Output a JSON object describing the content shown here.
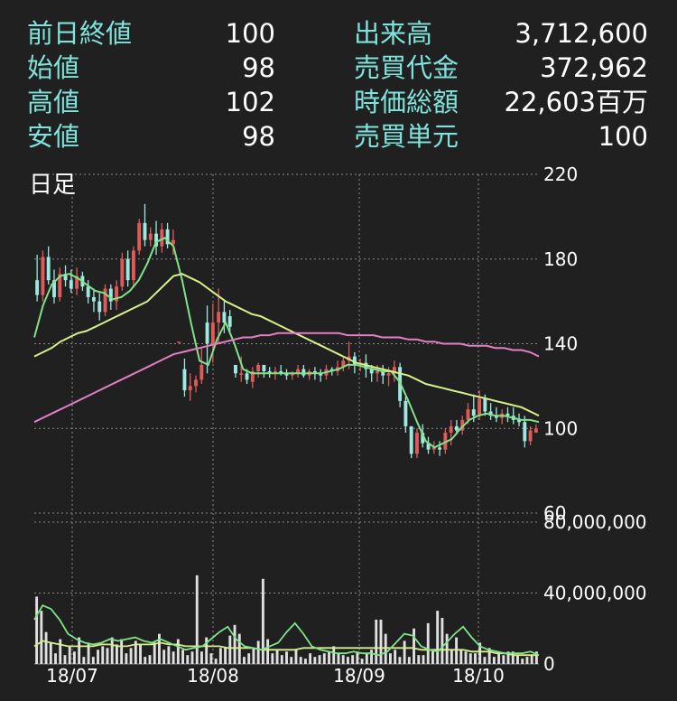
{
  "stats": {
    "left": [
      {
        "label": "前日終値",
        "value": "100"
      },
      {
        "label": "始値",
        "value": "98"
      },
      {
        "label": "高値",
        "value": "102"
      },
      {
        "label": "安値",
        "value": "98"
      }
    ],
    "right": [
      {
        "label": "出来高",
        "value": "3,712,600"
      },
      {
        "label": "売買代金",
        "value": "372,962"
      },
      {
        "label": "時価総額",
        "value": "22,603百万"
      },
      {
        "label": "売買単元",
        "value": "100"
      }
    ]
  },
  "colors": {
    "background": "#202020",
    "label": "#7fe3dc",
    "up": "#e05a5a",
    "down": "#9de8e0",
    "ma_short": "#7fe38a",
    "ma_mid": "#d6f08c",
    "ma_long": "#e27fc6",
    "volume": "#e0e0e0",
    "grid": "#8a8a8a"
  },
  "chart_data": [
    {
      "type": "candlestick",
      "title": "日足",
      "ylim": [
        60,
        220
      ],
      "y_ticks": [
        "220",
        "180",
        "140",
        "100",
        "60"
      ],
      "x_ticks": [
        "18/07",
        "18/08",
        "18/09",
        "18/10"
      ],
      "candles": [
        [
          170,
          182,
          160,
          163
        ],
        [
          163,
          184,
          160,
          181
        ],
        [
          181,
          186,
          168,
          170
        ],
        [
          170,
          175,
          159,
          162
        ],
        [
          162,
          176,
          160,
          173
        ],
        [
          173,
          177,
          167,
          170
        ],
        [
          170,
          175,
          164,
          166
        ],
        [
          166,
          176,
          163,
          172
        ],
        [
          172,
          174,
          165,
          167
        ],
        [
          167,
          170,
          159,
          162
        ],
        [
          162,
          166,
          155,
          160
        ],
        [
          160,
          164,
          151,
          155
        ],
        [
          155,
          168,
          153,
          166
        ],
        [
          166,
          168,
          156,
          160
        ],
        [
          160,
          170,
          156,
          167
        ],
        [
          167,
          183,
          165,
          180
        ],
        [
          180,
          184,
          167,
          170
        ],
        [
          170,
          186,
          167,
          184
        ],
        [
          184,
          199,
          182,
          197
        ],
        [
          197,
          206,
          186,
          189
        ],
        [
          189,
          195,
          186,
          192
        ],
        [
          192,
          198,
          182,
          186
        ],
        [
          186,
          197,
          183,
          194
        ],
        [
          194,
          197,
          185,
          187
        ],
        [
          187,
          194,
          182,
          189
        ],
        [
          141,
          141,
          141,
          141
        ],
        [
          128,
          133,
          115,
          118
        ],
        [
          118,
          126,
          113,
          120
        ],
        [
          120,
          125,
          117,
          123
        ],
        [
          123,
          138,
          121,
          130
        ],
        [
          150,
          158,
          126,
          140
        ],
        [
          140,
          159,
          131,
          150
        ],
        [
          150,
          166,
          140,
          155
        ],
        [
          155,
          160,
          145,
          150
        ],
        [
          153,
          156,
          145,
          148
        ],
        [
          130,
          130,
          124,
          126
        ],
        [
          126,
          134,
          122,
          126
        ],
        [
          126,
          128,
          121,
          123
        ],
        [
          122,
          129,
          119,
          127
        ],
        [
          127,
          131,
          124,
          130
        ],
        [
          130,
          130,
          124,
          127
        ],
        [
          127,
          129,
          124,
          126
        ],
        [
          126,
          129,
          123,
          127
        ],
        [
          127,
          130,
          125,
          126
        ],
        [
          126,
          128,
          123,
          125
        ],
        [
          125,
          127,
          123,
          126
        ],
        [
          126,
          130,
          124,
          128
        ],
        [
          128,
          130,
          124,
          125
        ],
        [
          125,
          128,
          123,
          127
        ],
        [
          127,
          129,
          123,
          126
        ],
        [
          126,
          128,
          122,
          125
        ],
        [
          125,
          130,
          123,
          128
        ],
        [
          128,
          129,
          125,
          127
        ],
        [
          127,
          132,
          125,
          129
        ],
        [
          129,
          134,
          127,
          132
        ],
        [
          132,
          141,
          128,
          134
        ],
        [
          134,
          136,
          126,
          130
        ],
        [
          130,
          133,
          127,
          131
        ],
        [
          131,
          135,
          124,
          128
        ],
        [
          128,
          130,
          122,
          126
        ],
        [
          126,
          130,
          122,
          127
        ],
        [
          127,
          130,
          121,
          125
        ],
        [
          125,
          129,
          120,
          126
        ],
        [
          126,
          132,
          122,
          129
        ],
        [
          129,
          131,
          110,
          113
        ],
        [
          113,
          115,
          98,
          101
        ],
        [
          101,
          101,
          86,
          88
        ],
        [
          88,
          100,
          86,
          98
        ],
        [
          98,
          102,
          91,
          93
        ],
        [
          93,
          96,
          88,
          90
        ],
        [
          90,
          94,
          88,
          91
        ],
        [
          91,
          94,
          87,
          90
        ],
        [
          90,
          100,
          88,
          98
        ],
        [
          98,
          104,
          92,
          101
        ],
        [
          101,
          104,
          97,
          99
        ],
        [
          99,
          106,
          97,
          104
        ],
        [
          104,
          112,
          102,
          109
        ],
        [
          109,
          116,
          103,
          106
        ],
        [
          106,
          118,
          104,
          114
        ],
        [
          114,
          116,
          106,
          108
        ],
        [
          108,
          112,
          104,
          106
        ],
        [
          106,
          110,
          103,
          105
        ],
        [
          105,
          109,
          102,
          107
        ],
        [
          107,
          110,
          103,
          106
        ],
        [
          106,
          110,
          102,
          104
        ],
        [
          104,
          107,
          101,
          103
        ],
        [
          103,
          106,
          91,
          94
        ],
        [
          94,
          101,
          92,
          99
        ],
        [
          98,
          102,
          98,
          100
        ]
      ],
      "series": [
        {
          "values": [
            143,
            158,
            168,
            172,
            173,
            171,
            168,
            165,
            164,
            161,
            162,
            165,
            170,
            178,
            188,
            190,
            186,
            170,
            150,
            132,
            130,
            142,
            150,
            140,
            128,
            126,
            126,
            126,
            126,
            126,
            126,
            126,
            126,
            126,
            127,
            128,
            130,
            130,
            129,
            128,
            127,
            127,
            122,
            113,
            103,
            94,
            91,
            93,
            95,
            100,
            104,
            106,
            107,
            106,
            106,
            105,
            104,
            104,
            103
          ]
        },
        {
          "values": [
            134,
            136,
            138,
            141,
            143,
            145,
            146,
            148,
            150,
            152,
            154,
            156,
            158,
            160,
            164,
            168,
            172,
            173,
            171,
            169,
            166,
            163,
            160,
            158,
            156,
            154,
            153,
            151,
            149,
            147,
            145,
            143,
            141,
            139,
            137,
            135,
            133,
            131,
            130,
            129,
            128,
            127,
            126,
            125,
            123,
            121,
            120,
            119,
            118,
            117,
            116,
            115,
            114,
            113,
            112,
            111,
            110,
            108,
            106
          ]
        },
        {
          "values": [
            103,
            105,
            107,
            109,
            111,
            113,
            115,
            117,
            119,
            121,
            123,
            125,
            127,
            129,
            131,
            133,
            135,
            136,
            137,
            138,
            139,
            140,
            141,
            142,
            143,
            143,
            144,
            144,
            145,
            145,
            145,
            145,
            145,
            145,
            145,
            145,
            144,
            144,
            144,
            144,
            143,
            143,
            143,
            142,
            142,
            141,
            141,
            140,
            140,
            140,
            139,
            139,
            139,
            138,
            138,
            137,
            137,
            136,
            134
          ]
        }
      ]
    },
    {
      "type": "bar",
      "ylim": [
        0,
        80000000
      ],
      "y_ticks": [
        "80,000,000",
        "40,000,000",
        "0"
      ],
      "values": [
        38,
        30,
        18,
        12,
        6,
        14,
        5,
        10,
        7,
        15,
        4,
        12,
        4,
        8,
        10,
        9,
        15,
        11,
        14,
        6,
        9,
        13,
        11,
        4,
        5,
        12,
        17,
        8,
        10,
        7,
        14,
        8,
        5,
        7,
        50,
        7,
        15,
        6,
        3,
        9,
        9,
        16,
        22,
        17,
        4,
        6,
        9,
        13,
        48,
        14,
        6,
        8,
        5,
        7,
        4,
        8,
        4,
        3,
        6,
        4,
        5,
        6,
        7,
        10,
        6,
        5,
        4,
        5,
        7,
        3,
        6,
        8,
        25,
        25,
        17,
        6,
        8,
        4,
        13,
        4,
        20,
        5,
        5,
        23,
        8,
        30,
        26,
        17,
        8,
        15,
        8,
        7,
        6,
        6,
        12,
        4,
        9,
        4,
        7,
        5,
        7,
        7,
        5,
        3,
        4,
        5,
        7
      ],
      "series": [
        {
          "values": [
            10,
            13,
            12,
            11,
            10,
            10,
            10,
            10,
            11,
            11,
            10,
            10,
            11,
            11,
            11,
            12,
            11,
            11,
            10,
            10,
            10,
            10,
            10,
            9,
            9,
            9,
            9,
            8,
            8,
            8,
            8,
            8,
            9,
            9,
            9,
            9,
            9,
            9,
            9,
            9,
            9,
            9,
            9,
            9,
            9,
            9,
            8,
            8,
            8,
            8,
            8,
            8,
            7,
            7,
            7,
            6,
            6,
            5,
            5,
            5,
            5
          ]
        },
        {
          "values": [
            25,
            33,
            31,
            25,
            17,
            14,
            12,
            11,
            12,
            14,
            13,
            14,
            15,
            13,
            12,
            14,
            12,
            10,
            8,
            9,
            10,
            14,
            18,
            21,
            14,
            10,
            9,
            8,
            10,
            12,
            18,
            23,
            17,
            10,
            8,
            7,
            6,
            6,
            7,
            6,
            6,
            5,
            7,
            12,
            17,
            16,
            10,
            8,
            7,
            12,
            17,
            21,
            15,
            10,
            8,
            7,
            6,
            6,
            6,
            7,
            5
          ]
        }
      ]
    }
  ]
}
